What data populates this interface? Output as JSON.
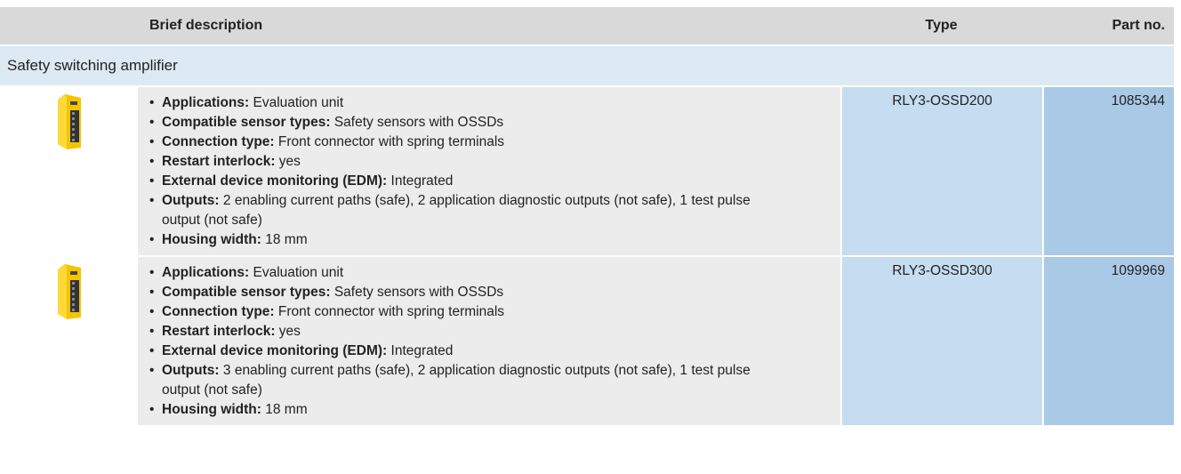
{
  "header": {
    "description": "Brief description",
    "type": "Type",
    "part_no": "Part no."
  },
  "section": "Safety switching amplifier",
  "rows": [
    {
      "type": "RLY3-OSSD200",
      "part_no": "1085344",
      "items": [
        {
          "label": "Applications:",
          "text": "Evaluation unit"
        },
        {
          "label": "Compatible sensor types:",
          "text": "Safety sensors with OSSDs"
        },
        {
          "label": "Connection type:",
          "text": "Front connector with spring terminals"
        },
        {
          "label": "Restart interlock:",
          "text": "yes"
        },
        {
          "label": "External device monitoring (EDM):",
          "text": "Integrated"
        },
        {
          "label": "Outputs:",
          "text": "2 enabling current paths (safe), 2 application diagnostic outputs (not safe), 1 test pulse output (not safe)"
        },
        {
          "label": "Housing width:",
          "text": "18 mm"
        }
      ]
    },
    {
      "type": "RLY3-OSSD300",
      "part_no": "1099969",
      "items": [
        {
          "label": "Applications:",
          "text": "Evaluation unit"
        },
        {
          "label": "Compatible sensor types:",
          "text": "Safety sensors with OSSDs"
        },
        {
          "label": "Connection type:",
          "text": "Front connector with spring terminals"
        },
        {
          "label": "Restart interlock:",
          "text": "yes"
        },
        {
          "label": "External device monitoring (EDM):",
          "text": "Integrated"
        },
        {
          "label": "Outputs:",
          "text": "3 enabling current paths (safe), 2 application diagnostic outputs (not safe), 1 test pulse output (not safe)"
        },
        {
          "label": "Housing width:",
          "text": "18 mm"
        }
      ]
    }
  ]
}
